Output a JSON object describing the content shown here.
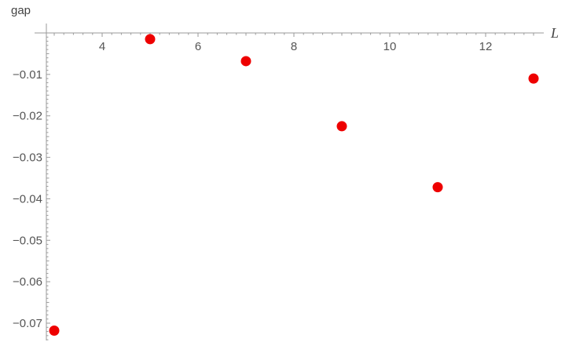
{
  "chart_data": {
    "type": "scatter",
    "title": "",
    "xlabel": "L",
    "ylabel": "gap",
    "xlim": [
      2.8,
      13.2
    ],
    "ylim": [
      -0.0755,
      0.0025
    ],
    "x_ticks": [
      4,
      6,
      8,
      10,
      12
    ],
    "x_tick_labels": [
      "4",
      "6",
      "8",
      "10",
      "12"
    ],
    "y_ticks": [
      -0.01,
      -0.02,
      -0.03,
      -0.04,
      -0.05,
      -0.06,
      -0.07
    ],
    "y_tick_labels": [
      "-0.01",
      "-0.02",
      "-0.03",
      "-0.04",
      "-0.05",
      "-0.06",
      "-0.07"
    ],
    "grid": false,
    "series": [
      {
        "color": "#ee0000",
        "x": [
          3,
          5,
          7,
          9,
          11,
          13
        ],
        "y": [
          -0.0718,
          -0.0015,
          -0.0068,
          -0.0225,
          -0.0372,
          -0.011
        ]
      }
    ]
  }
}
